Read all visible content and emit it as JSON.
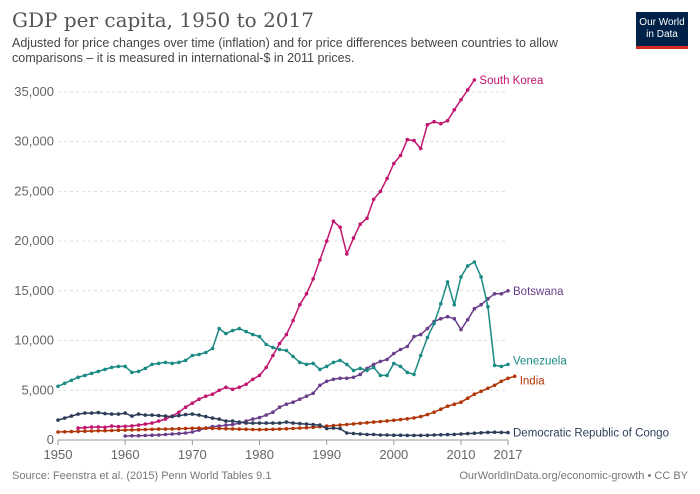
{
  "header": {
    "title": "GDP per capita, 1950 to 2017",
    "subtitle": "Adjusted for price changes over time (inflation) and for price differences between countries to allow comparisons – it is measured in international-$ in 2011 prices.",
    "logo_line1": "Our World",
    "logo_line2": "in Data"
  },
  "footer": {
    "source": "Source: Feenstra et al. (2015) Penn World Tables 9.1",
    "url": "OurWorldInData.org/economic-growth • CC BY"
  },
  "colors": {
    "south_korea": "#c1156f",
    "botswana": "#6a3e8a",
    "venezuela": "#1b8a84",
    "india": "#b13507",
    "drc": "#2c3e5a"
  },
  "chart_data": {
    "type": "line",
    "title": "GDP per capita, 1950 to 2017",
    "xlabel": "",
    "ylabel": "",
    "xlim": [
      1950,
      2017
    ],
    "ylim": [
      0,
      37000
    ],
    "xticks": [
      "1950",
      "1960",
      "1970",
      "1980",
      "1990",
      "2000",
      "2010",
      "2017"
    ],
    "xtick_values": [
      1950,
      1960,
      1970,
      1980,
      1990,
      2000,
      2010,
      2017
    ],
    "yticks": [
      "0",
      "5,000",
      "10,000",
      "15,000",
      "20,000",
      "25,000",
      "30,000",
      "35,000"
    ],
    "ytick_values": [
      0,
      5000,
      10000,
      15000,
      20000,
      25000,
      30000,
      35000
    ],
    "grid": "horizontal-dashed",
    "series": [
      {
        "name": "South Korea",
        "color_key": "south_korea",
        "start_year": 1953,
        "values": [
          1200,
          1250,
          1300,
          1320,
          1280,
          1400,
          1350,
          1380,
          1420,
          1500,
          1600,
          1700,
          1900,
          2100,
          2400,
          2800,
          3300,
          3700,
          4100,
          4400,
          4600,
          5000,
          5300,
          5100,
          5300,
          5600,
          6100,
          6500,
          7300,
          8500,
          9700,
          10600,
          12000,
          13600,
          14700,
          16200,
          18100,
          20000,
          22000,
          21400,
          18700,
          20300,
          21700,
          22300,
          24200,
          25000,
          26300,
          27800,
          28600,
          30200,
          30100,
          29300,
          31700,
          32000,
          31800,
          32100,
          33200,
          34200,
          35200,
          36200
        ]
      },
      {
        "name": "Botswana",
        "color_key": "botswana",
        "start_year": 1960,
        "values": [
          400,
          420,
          430,
          450,
          480,
          500,
          550,
          600,
          640,
          700,
          800,
          1000,
          1200,
          1350,
          1400,
          1500,
          1550,
          1700,
          1900,
          2100,
          2250,
          2500,
          2800,
          3300,
          3600,
          3800,
          4100,
          4400,
          4700,
          5500,
          5900,
          6100,
          6200,
          6200,
          6300,
          6600,
          7200,
          7600,
          7900,
          8100,
          8700,
          9100,
          9400,
          10400,
          10600,
          11200,
          11900,
          12200,
          12400,
          12200,
          11100,
          12100,
          13200,
          13600,
          14200,
          14700,
          14700,
          15000
        ]
      },
      {
        "name": "Venezuela",
        "color_key": "venezuela",
        "start_year": 1950,
        "values": [
          5400,
          5700,
          6000,
          6300,
          6500,
          6700,
          6900,
          7100,
          7300,
          7400,
          7400,
          6800,
          6900,
          7200,
          7600,
          7700,
          7800,
          7700,
          7800,
          8000,
          8500,
          8600,
          8800,
          9200,
          11200,
          10700,
          11000,
          11200,
          10900,
          10600,
          10400,
          9600,
          9300,
          9100,
          9000,
          8400,
          7800,
          7600,
          7700,
          7100,
          7400,
          7800,
          8000,
          7600,
          7000,
          7200,
          7000,
          7300,
          6500,
          6500,
          7700,
          7400,
          6800,
          6600,
          8500,
          10300,
          11700,
          13700,
          15900,
          13600,
          16400,
          17500,
          17900,
          16400,
          13400,
          7500,
          7400,
          7600
        ]
      },
      {
        "name": "India",
        "color_key": "india",
        "start_year": 1950,
        "values": [
          800,
          820,
          840,
          860,
          880,
          900,
          920,
          940,
          960,
          980,
          1000,
          1020,
          1040,
          1060,
          1080,
          1100,
          1100,
          1120,
          1140,
          1160,
          1180,
          1200,
          1190,
          1170,
          1160,
          1140,
          1120,
          1100,
          1080,
          1060,
          1050,
          1060,
          1080,
          1100,
          1130,
          1160,
          1200,
          1240,
          1290,
          1340,
          1400,
          1450,
          1500,
          1560,
          1620,
          1680,
          1740,
          1800,
          1860,
          1920,
          1980,
          2050,
          2130,
          2220,
          2350,
          2550,
          2800,
          3100,
          3400,
          3600,
          3800,
          4200,
          4600,
          4900,
          5200,
          5500,
          5900,
          6200,
          6400
        ]
      },
      {
        "name": "Democratic Republic of Congo",
        "color_key": "drc",
        "start_year": 1950,
        "values": [
          2000,
          2200,
          2400,
          2600,
          2700,
          2700,
          2750,
          2650,
          2600,
          2600,
          2700,
          2400,
          2600,
          2500,
          2500,
          2450,
          2400,
          2350,
          2450,
          2550,
          2600,
          2500,
          2350,
          2200,
          2100,
          1900,
          1900,
          1800,
          1700,
          1700,
          1700,
          1700,
          1700,
          1700,
          1800,
          1700,
          1650,
          1600,
          1550,
          1500,
          1150,
          1200,
          1150,
          700,
          650,
          600,
          550,
          550,
          500,
          500,
          480,
          480,
          460,
          460,
          460,
          470,
          500,
          520,
          540,
          560,
          600,
          640,
          680,
          720,
          760,
          780,
          760,
          740
        ]
      }
    ]
  }
}
